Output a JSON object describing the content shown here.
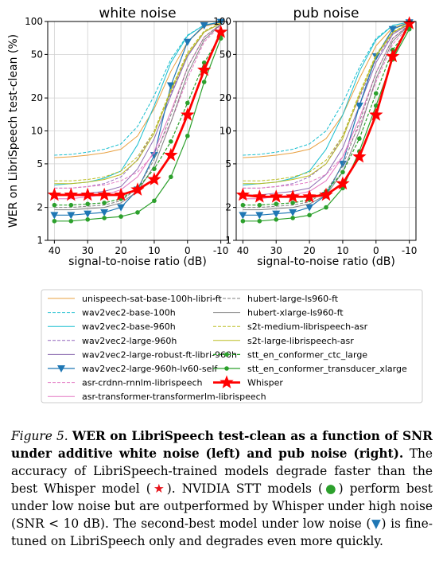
{
  "chart_data": [
    {
      "type": "line",
      "title": "white noise",
      "xlabel": "signal-to-noise ratio (dB)",
      "ylabel": "WER on LibriSpeech test-clean (%)",
      "x": [
        40,
        35,
        30,
        25,
        20,
        15,
        10,
        5,
        0,
        -5,
        -10
      ],
      "xticks": [
        "40",
        "30",
        "20",
        "10",
        "0",
        "-10"
      ],
      "yticks": [
        "1",
        "2",
        "5",
        "10",
        "20",
        "50",
        "100"
      ],
      "xlim": [
        42,
        -12
      ],
      "ylim": [
        1,
        100
      ],
      "yscale": "log",
      "grid": true,
      "series": [
        {
          "name": "unispeech-sat-base-100h-libri-ft",
          "color": "#e8a040",
          "values": [
            5.7,
            5.8,
            6.0,
            6.3,
            6.8,
            9.0,
            16,
            35,
            65,
            90,
            98
          ]
        },
        {
          "name": "wav2vec2-base-100h",
          "color": "#17becf",
          "values": [
            6.0,
            6.1,
            6.4,
            6.8,
            7.6,
            11,
            21,
            45,
            75,
            93,
            99
          ]
        },
        {
          "name": "wav2vec2-base-960h",
          "color": "#17becf",
          "values": [
            3.2,
            3.3,
            3.4,
            3.7,
            4.3,
            7.5,
            17,
            42,
            74,
            93,
            99
          ]
        },
        {
          "name": "wav2vec2-large-960h",
          "color": "#9467bd",
          "values": [
            3.0,
            3.0,
            3.1,
            3.3,
            3.8,
            5.5,
            10,
            22,
            48,
            80,
            96
          ]
        },
        {
          "name": "wav2vec2-large-robust-ft-libri-960h",
          "color": "#8c6bb1",
          "values": [
            2.6,
            2.6,
            2.7,
            2.8,
            3.1,
            4.5,
            8.5,
            21,
            48,
            80,
            96
          ]
        },
        {
          "name": "wav2vec2-large-960h-lv60-self",
          "color": "#1f77b4",
          "values": [
            1.7,
            1.7,
            1.75,
            1.8,
            2.0,
            2.9,
            6.0,
            26,
            65,
            92,
            99
          ]
        },
        {
          "name": "asr-crdnn-rnnlm-librispeech",
          "color": "#e377c2",
          "values": [
            3.0,
            3.0,
            3.1,
            3.2,
            3.5,
            4.2,
            6.2,
            12,
            30,
            65,
            92
          ]
        },
        {
          "name": "asr-transformer-transformerlm-librispeech",
          "color": "#e377c2",
          "values": [
            2.4,
            2.4,
            2.5,
            2.6,
            2.9,
            3.8,
            6.5,
            15,
            38,
            72,
            94
          ]
        },
        {
          "name": "hubert-large-ls960-ft",
          "color": "#7f7f7f",
          "values": [
            2.0,
            2.0,
            2.05,
            2.1,
            2.3,
            3.0,
            5.5,
            14,
            38,
            72,
            95
          ]
        },
        {
          "name": "hubert-xlarge-ls960-ft",
          "color": "#7f7f7f",
          "values": [
            1.9,
            1.9,
            1.95,
            2.0,
            2.2,
            2.8,
            4.8,
            12,
            33,
            68,
            94
          ]
        },
        {
          "name": "s2t-medium-librispeech-asr",
          "color": "#bcbd22",
          "values": [
            3.5,
            3.5,
            3.6,
            3.8,
            4.3,
            5.8,
            10,
            24,
            52,
            82,
            97
          ]
        },
        {
          "name": "s2t-large-librispeech-asr",
          "color": "#bcbd22",
          "values": [
            3.3,
            3.3,
            3.4,
            3.6,
            4.0,
            5.4,
            9.5,
            23,
            50,
            80,
            96
          ]
        },
        {
          "name": "stt_en_conformer_ctc_large",
          "color": "#2ca02c",
          "values": [
            2.1,
            2.1,
            2.15,
            2.2,
            2.4,
            3.0,
            4.5,
            8.0,
            18,
            42,
            75
          ]
        },
        {
          "name": "stt_en_conformer_transducer_xlarge",
          "color": "#2ca02c",
          "values": [
            1.5,
            1.5,
            1.55,
            1.6,
            1.65,
            1.8,
            2.3,
            3.8,
            9.0,
            28,
            70
          ]
        },
        {
          "name": "Whisper",
          "color": "#ff0000",
          "values": [
            2.6,
            2.6,
            2.6,
            2.6,
            2.6,
            2.9,
            3.6,
            6.0,
            14,
            36,
            80
          ]
        }
      ]
    },
    {
      "type": "line",
      "title": "pub noise",
      "xlabel": "signal-to-noise ratio (dB)",
      "x": [
        40,
        35,
        30,
        25,
        20,
        15,
        10,
        5,
        0,
        -5,
        -10
      ],
      "xticks": [
        "40",
        "30",
        "20",
        "10",
        "0",
        "-10"
      ],
      "yticks": [
        "1",
        "2",
        "5",
        "10",
        "20",
        "50",
        "100"
      ],
      "xlim": [
        42,
        -12
      ],
      "ylim": [
        1,
        100
      ],
      "yscale": "log",
      "grid": true,
      "series": [
        {
          "name": "unispeech-sat-base-100h-libri-ft",
          "values": [
            5.7,
            5.8,
            6.0,
            6.3,
            6.8,
            8.5,
            14,
            30,
            60,
            88,
            98
          ]
        },
        {
          "name": "wav2vec2-base-100h",
          "values": [
            6.0,
            6.1,
            6.4,
            6.8,
            7.6,
            10,
            18,
            38,
            70,
            92,
            99
          ]
        },
        {
          "name": "wav2vec2-base-960h",
          "values": [
            3.2,
            3.3,
            3.4,
            3.7,
            4.3,
            6.8,
            14,
            35,
            68,
            92,
            99
          ]
        },
        {
          "name": "wav2vec2-large-960h",
          "values": [
            3.0,
            3.0,
            3.1,
            3.3,
            3.8,
            5.0,
            9.0,
            20,
            45,
            78,
            96
          ]
        },
        {
          "name": "wav2vec2-large-robust-ft-libri-960h",
          "values": [
            2.6,
            2.6,
            2.7,
            2.8,
            3.0,
            4.0,
            7.0,
            17,
            42,
            76,
            95
          ]
        },
        {
          "name": "wav2vec2-large-960h-lv60-self",
          "values": [
            1.7,
            1.7,
            1.75,
            1.8,
            2.0,
            2.6,
            5.0,
            17,
            48,
            85,
            98
          ]
        },
        {
          "name": "asr-crdnn-rnnlm-librispeech",
          "values": [
            3.0,
            3.0,
            3.1,
            3.2,
            3.4,
            4.0,
            5.8,
            11,
            28,
            62,
            91
          ]
        },
        {
          "name": "asr-transformer-transformerlm-librispeech",
          "values": [
            2.4,
            2.4,
            2.5,
            2.6,
            2.8,
            3.5,
            5.8,
            13,
            34,
            70,
            93
          ]
        },
        {
          "name": "hubert-large-ls960-ft",
          "values": [
            2.0,
            2.0,
            2.05,
            2.1,
            2.25,
            2.8,
            4.8,
            12,
            34,
            70,
            94
          ]
        },
        {
          "name": "hubert-xlarge-ls960-ft",
          "values": [
            1.9,
            1.9,
            1.95,
            2.0,
            2.15,
            2.6,
            4.2,
            10,
            30,
            66,
            93
          ]
        },
        {
          "name": "s2t-medium-librispeech-asr",
          "values": [
            3.5,
            3.5,
            3.6,
            3.8,
            4.2,
            5.4,
            9.0,
            22,
            50,
            80,
            97
          ]
        },
        {
          "name": "s2t-large-librispeech-asr",
          "values": [
            3.3,
            3.3,
            3.4,
            3.6,
            3.9,
            5.0,
            8.5,
            21,
            48,
            79,
            96
          ]
        },
        {
          "name": "stt_en_conformer_ctc_large",
          "values": [
            2.1,
            2.1,
            2.15,
            2.2,
            2.35,
            2.8,
            4.2,
            8.5,
            22,
            55,
            88
          ]
        },
        {
          "name": "stt_en_conformer_transducer_xlarge",
          "values": [
            1.5,
            1.5,
            1.55,
            1.6,
            1.7,
            2.0,
            3.0,
            6.5,
            17,
            45,
            85
          ]
        },
        {
          "name": "Whisper",
          "values": [
            2.6,
            2.5,
            2.5,
            2.5,
            2.5,
            2.6,
            3.3,
            5.8,
            14,
            48,
            96
          ]
        }
      ]
    }
  ],
  "caption": {
    "label": "Figure 5.",
    "bold_text": "WER on LibriSpeech test-clean as a function of SNR under additive white noise (left) and pub noise (right).",
    "text_1": "The accuracy of LibriSpeech-trained models degrade faster than the best Whisper model (",
    "star_symbol": "★",
    "text_2": "). NVIDIA STT models (",
    "dot_symbol": "●",
    "text_3": ") perform best under low noise but are outperformed by Whisper under high noise (SNR < 10 dB). The second-best model under low noise (",
    "triangle_symbol": "▼",
    "text_4": ") is fine-tuned on LibriSpeech only and degrades even more quickly."
  }
}
